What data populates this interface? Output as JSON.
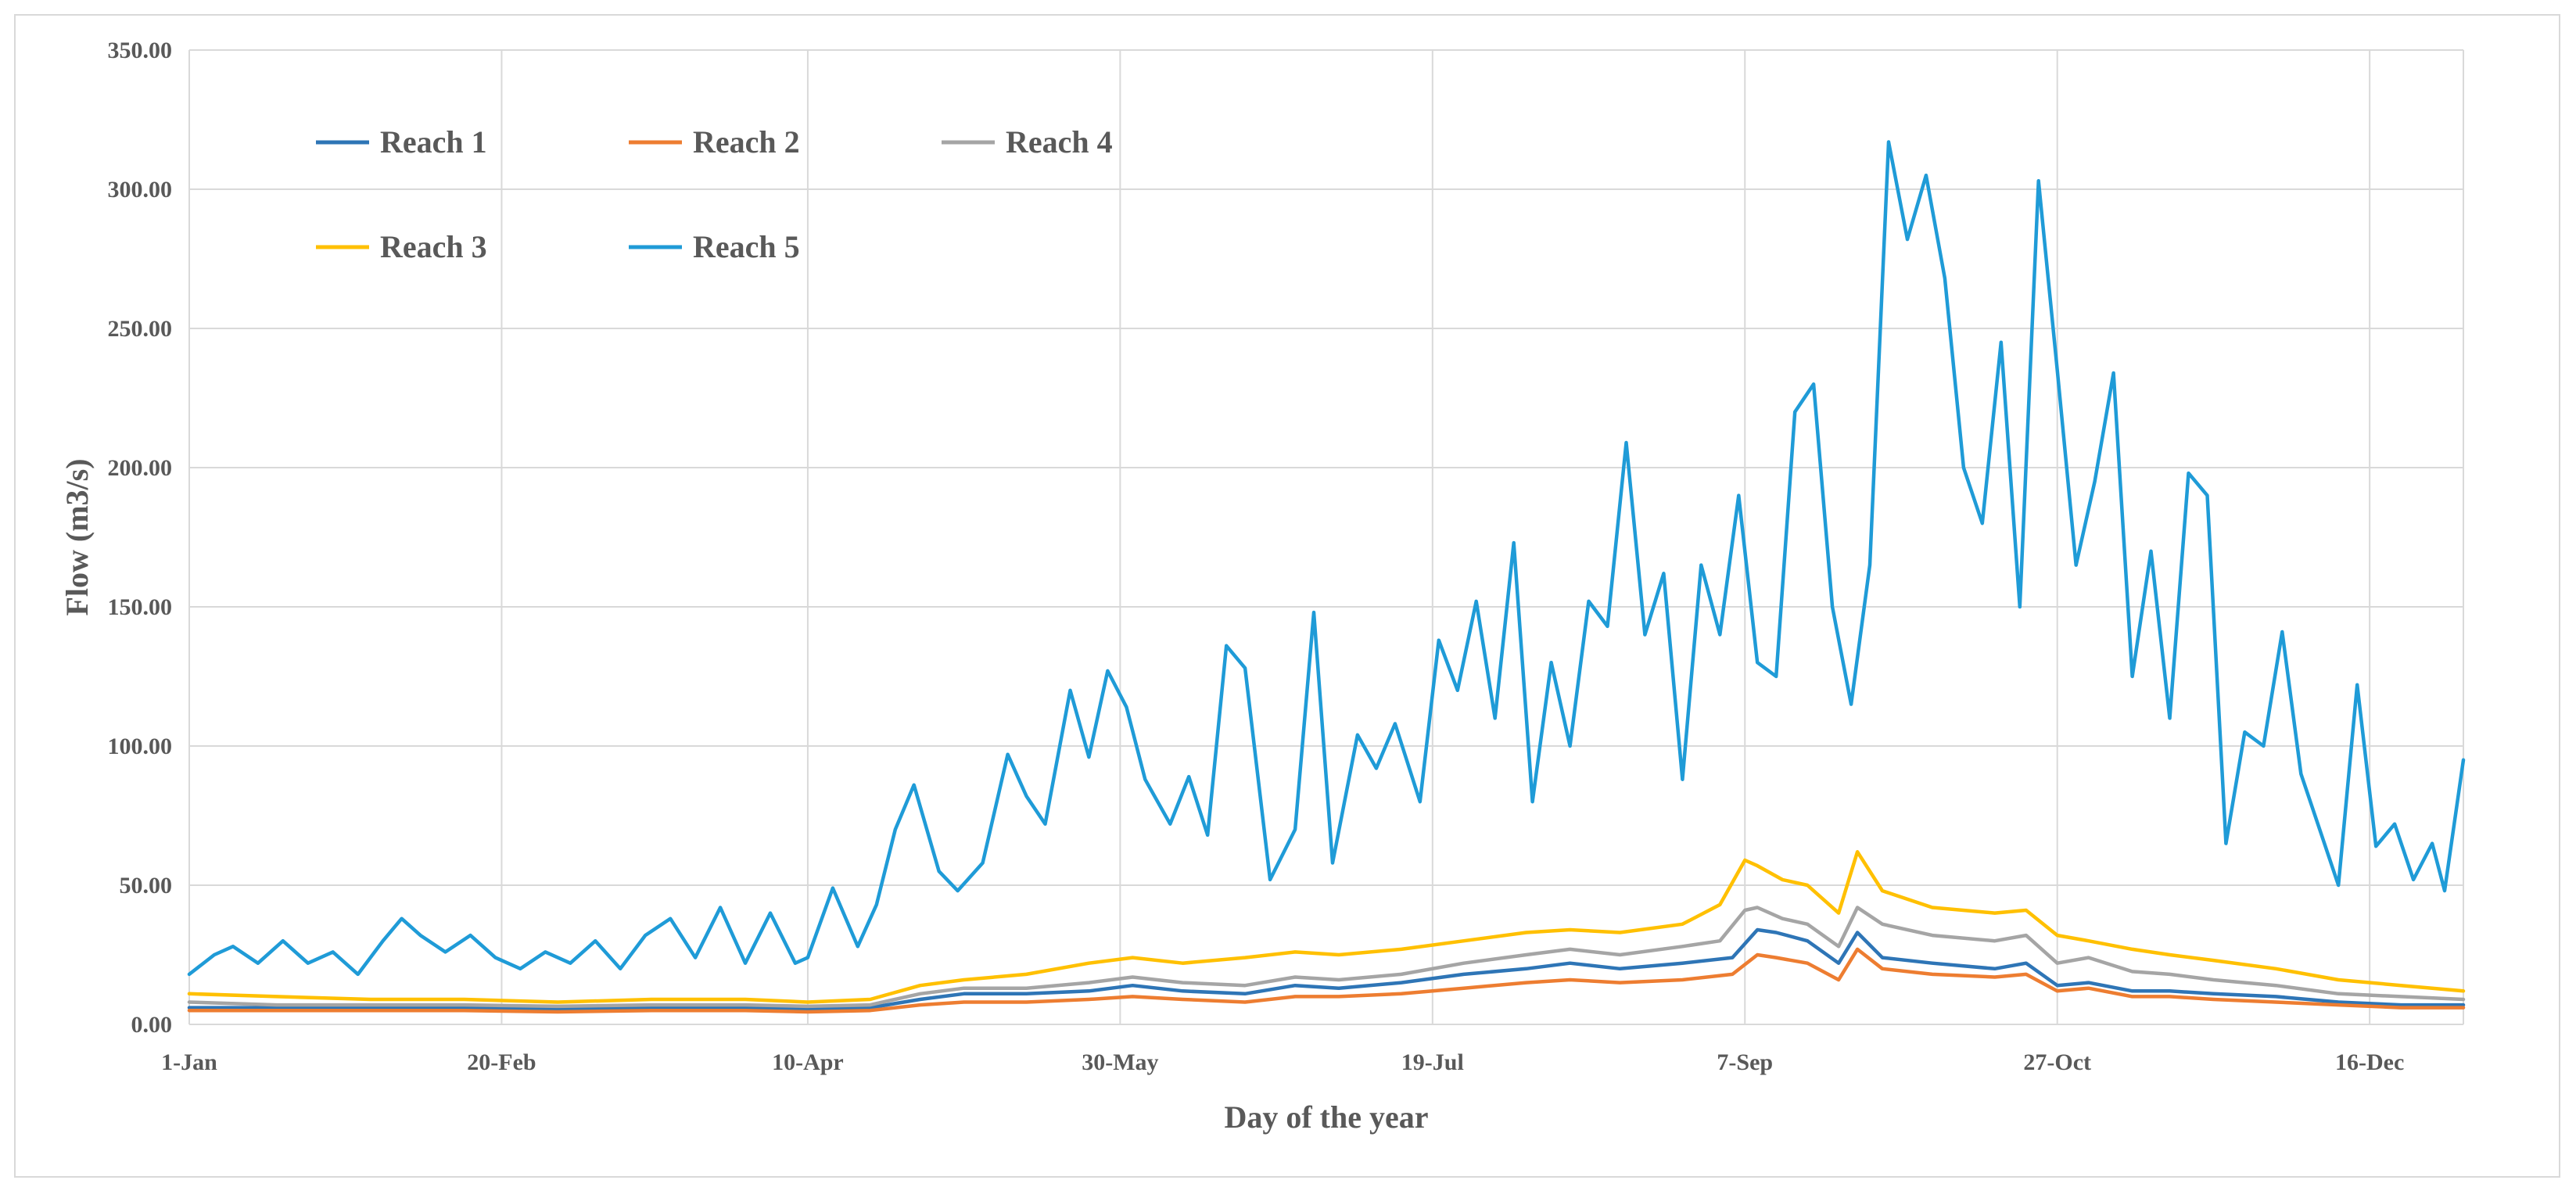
{
  "chart_data": {
    "type": "line",
    "title": "",
    "xlabel": "Day of the year",
    "ylabel": "Flow (m3/s)",
    "ylim": [
      0,
      350
    ],
    "xlim": [
      1,
      365
    ],
    "grid": true,
    "legend_position": "top-left",
    "y_ticks": [
      "0.00",
      "50.00",
      "100.00",
      "150.00",
      "200.00",
      "250.00",
      "300.00",
      "350.00"
    ],
    "x_ticks": [
      {
        "day": 1,
        "label": "1-Jan"
      },
      {
        "day": 51,
        "label": "20-Feb"
      },
      {
        "day": 100,
        "label": "10-Apr"
      },
      {
        "day": 150,
        "label": "30-May"
      },
      {
        "day": 200,
        "label": "19-Jul"
      },
      {
        "day": 250,
        "label": "7-Sep"
      },
      {
        "day": 300,
        "label": "27-Oct"
      },
      {
        "day": 350,
        "label": "16-Dec"
      }
    ],
    "legend_order": [
      0,
      1,
      3,
      2,
      4
    ],
    "series": [
      {
        "name": "Reach 1",
        "color": "#2e75b6",
        "points": [
          [
            1,
            6
          ],
          [
            15,
            6
          ],
          [
            30,
            6
          ],
          [
            45,
            6
          ],
          [
            60,
            5.5
          ],
          [
            75,
            6
          ],
          [
            90,
            6
          ],
          [
            100,
            5.5
          ],
          [
            110,
            6
          ],
          [
            118,
            9
          ],
          [
            125,
            11
          ],
          [
            135,
            11
          ],
          [
            145,
            12
          ],
          [
            152,
            14
          ],
          [
            160,
            12
          ],
          [
            170,
            11
          ],
          [
            178,
            14
          ],
          [
            185,
            13
          ],
          [
            195,
            15
          ],
          [
            205,
            18
          ],
          [
            215,
            20
          ],
          [
            222,
            22
          ],
          [
            230,
            20
          ],
          [
            240,
            22
          ],
          [
            248,
            24
          ],
          [
            252,
            34
          ],
          [
            255,
            33
          ],
          [
            260,
            30
          ],
          [
            265,
            22
          ],
          [
            268,
            33
          ],
          [
            272,
            24
          ],
          [
            280,
            22
          ],
          [
            290,
            20
          ],
          [
            295,
            22
          ],
          [
            300,
            14
          ],
          [
            305,
            15
          ],
          [
            312,
            12
          ],
          [
            318,
            12
          ],
          [
            325,
            11
          ],
          [
            335,
            10
          ],
          [
            345,
            8
          ],
          [
            355,
            7
          ],
          [
            365,
            7
          ]
        ]
      },
      {
        "name": "Reach 2",
        "color": "#ed7d31",
        "points": [
          [
            1,
            5
          ],
          [
            15,
            5
          ],
          [
            30,
            5
          ],
          [
            45,
            5
          ],
          [
            60,
            4.5
          ],
          [
            75,
            5
          ],
          [
            90,
            5
          ],
          [
            100,
            4.5
          ],
          [
            110,
            5
          ],
          [
            118,
            7
          ],
          [
            125,
            8
          ],
          [
            135,
            8
          ],
          [
            145,
            9
          ],
          [
            152,
            10
          ],
          [
            160,
            9
          ],
          [
            170,
            8
          ],
          [
            178,
            10
          ],
          [
            185,
            10
          ],
          [
            195,
            11
          ],
          [
            205,
            13
          ],
          [
            215,
            15
          ],
          [
            222,
            16
          ],
          [
            230,
            15
          ],
          [
            240,
            16
          ],
          [
            248,
            18
          ],
          [
            252,
            25
          ],
          [
            255,
            24
          ],
          [
            260,
            22
          ],
          [
            265,
            16
          ],
          [
            268,
            27
          ],
          [
            272,
            20
          ],
          [
            280,
            18
          ],
          [
            290,
            17
          ],
          [
            295,
            18
          ],
          [
            300,
            12
          ],
          [
            305,
            13
          ],
          [
            312,
            10
          ],
          [
            318,
            10
          ],
          [
            325,
            9
          ],
          [
            335,
            8
          ],
          [
            345,
            7
          ],
          [
            355,
            6
          ],
          [
            365,
            6
          ]
        ]
      },
      {
        "name": "Reach 3",
        "color": "#ffc000",
        "points": [
          [
            1,
            11
          ],
          [
            15,
            10
          ],
          [
            30,
            9
          ],
          [
            45,
            9
          ],
          [
            60,
            8
          ],
          [
            75,
            9
          ],
          [
            90,
            9
          ],
          [
            100,
            8
          ],
          [
            110,
            9
          ],
          [
            118,
            14
          ],
          [
            125,
            16
          ],
          [
            135,
            18
          ],
          [
            145,
            22
          ],
          [
            152,
            24
          ],
          [
            160,
            22
          ],
          [
            170,
            24
          ],
          [
            178,
            26
          ],
          [
            185,
            25
          ],
          [
            195,
            27
          ],
          [
            205,
            30
          ],
          [
            215,
            33
          ],
          [
            222,
            34
          ],
          [
            230,
            33
          ],
          [
            240,
            36
          ],
          [
            246,
            43
          ],
          [
            250,
            59
          ],
          [
            252,
            57
          ],
          [
            256,
            52
          ],
          [
            260,
            50
          ],
          [
            265,
            40
          ],
          [
            268,
            62
          ],
          [
            272,
            48
          ],
          [
            280,
            42
          ],
          [
            290,
            40
          ],
          [
            295,
            41
          ],
          [
            300,
            32
          ],
          [
            305,
            30
          ],
          [
            312,
            27
          ],
          [
            318,
            25
          ],
          [
            325,
            23
          ],
          [
            335,
            20
          ],
          [
            345,
            16
          ],
          [
            355,
            14
          ],
          [
            365,
            12
          ]
        ]
      },
      {
        "name": "Reach 4",
        "color": "#a5a5a5",
        "points": [
          [
            1,
            8
          ],
          [
            15,
            7
          ],
          [
            30,
            7
          ],
          [
            45,
            7
          ],
          [
            60,
            6.5
          ],
          [
            75,
            7
          ],
          [
            90,
            7
          ],
          [
            100,
            6.5
          ],
          [
            110,
            7
          ],
          [
            118,
            11
          ],
          [
            125,
            13
          ],
          [
            135,
            13
          ],
          [
            145,
            15
          ],
          [
            152,
            17
          ],
          [
            160,
            15
          ],
          [
            170,
            14
          ],
          [
            178,
            17
          ],
          [
            185,
            16
          ],
          [
            195,
            18
          ],
          [
            205,
            22
          ],
          [
            215,
            25
          ],
          [
            222,
            27
          ],
          [
            230,
            25
          ],
          [
            240,
            28
          ],
          [
            246,
            30
          ],
          [
            250,
            41
          ],
          [
            252,
            42
          ],
          [
            256,
            38
          ],
          [
            260,
            36
          ],
          [
            265,
            28
          ],
          [
            268,
            42
          ],
          [
            272,
            36
          ],
          [
            280,
            32
          ],
          [
            290,
            30
          ],
          [
            295,
            32
          ],
          [
            300,
            22
          ],
          [
            305,
            24
          ],
          [
            312,
            19
          ],
          [
            318,
            18
          ],
          [
            325,
            16
          ],
          [
            335,
            14
          ],
          [
            345,
            11
          ],
          [
            355,
            10
          ],
          [
            365,
            9
          ]
        ]
      },
      {
        "name": "Reach 5",
        "color": "#1f9bd7",
        "points": [
          [
            1,
            18
          ],
          [
            5,
            25
          ],
          [
            8,
            28
          ],
          [
            12,
            22
          ],
          [
            16,
            30
          ],
          [
            20,
            22
          ],
          [
            24,
            26
          ],
          [
            28,
            18
          ],
          [
            32,
            30
          ],
          [
            35,
            38
          ],
          [
            38,
            32
          ],
          [
            42,
            26
          ],
          [
            46,
            32
          ],
          [
            50,
            24
          ],
          [
            54,
            20
          ],
          [
            58,
            26
          ],
          [
            62,
            22
          ],
          [
            66,
            30
          ],
          [
            70,
            20
          ],
          [
            74,
            32
          ],
          [
            78,
            38
          ],
          [
            82,
            24
          ],
          [
            86,
            42
          ],
          [
            90,
            22
          ],
          [
            94,
            40
          ],
          [
            98,
            22
          ],
          [
            100,
            24
          ],
          [
            104,
            49
          ],
          [
            108,
            28
          ],
          [
            111,
            43
          ],
          [
            114,
            70
          ],
          [
            117,
            86
          ],
          [
            121,
            55
          ],
          [
            124,
            48
          ],
          [
            128,
            58
          ],
          [
            132,
            97
          ],
          [
            135,
            82
          ],
          [
            138,
            72
          ],
          [
            142,
            120
          ],
          [
            145,
            96
          ],
          [
            148,
            127
          ],
          [
            151,
            114
          ],
          [
            154,
            88
          ],
          [
            158,
            72
          ],
          [
            161,
            89
          ],
          [
            164,
            68
          ],
          [
            167,
            136
          ],
          [
            170,
            128
          ],
          [
            174,
            52
          ],
          [
            178,
            70
          ],
          [
            181,
            148
          ],
          [
            184,
            58
          ],
          [
            188,
            104
          ],
          [
            191,
            92
          ],
          [
            194,
            108
          ],
          [
            198,
            80
          ],
          [
            201,
            138
          ],
          [
            204,
            120
          ],
          [
            207,
            152
          ],
          [
            210,
            110
          ],
          [
            213,
            173
          ],
          [
            216,
            80
          ],
          [
            219,
            130
          ],
          [
            222,
            100
          ],
          [
            225,
            152
          ],
          [
            228,
            143
          ],
          [
            231,
            209
          ],
          [
            234,
            140
          ],
          [
            237,
            162
          ],
          [
            240,
            88
          ],
          [
            243,
            165
          ],
          [
            246,
            140
          ],
          [
            249,
            190
          ],
          [
            252,
            130
          ],
          [
            255,
            125
          ],
          [
            258,
            220
          ],
          [
            261,
            230
          ],
          [
            264,
            150
          ],
          [
            267,
            115
          ],
          [
            270,
            165
          ],
          [
            273,
            317
          ],
          [
            276,
            282
          ],
          [
            279,
            305
          ],
          [
            282,
            268
          ],
          [
            285,
            200
          ],
          [
            288,
            180
          ],
          [
            291,
            245
          ],
          [
            294,
            150
          ],
          [
            297,
            303
          ],
          [
            300,
            235
          ],
          [
            303,
            165
          ],
          [
            306,
            195
          ],
          [
            309,
            234
          ],
          [
            312,
            125
          ],
          [
            315,
            170
          ],
          [
            318,
            110
          ],
          [
            321,
            198
          ],
          [
            324,
            190
          ],
          [
            327,
            65
          ],
          [
            330,
            105
          ],
          [
            333,
            100
          ],
          [
            336,
            141
          ],
          [
            339,
            90
          ],
          [
            342,
            70
          ],
          [
            345,
            50
          ],
          [
            348,
            122
          ],
          [
            351,
            64
          ],
          [
            354,
            72
          ],
          [
            357,
            52
          ],
          [
            360,
            65
          ],
          [
            362,
            48
          ],
          [
            365,
            95
          ]
        ]
      }
    ]
  }
}
